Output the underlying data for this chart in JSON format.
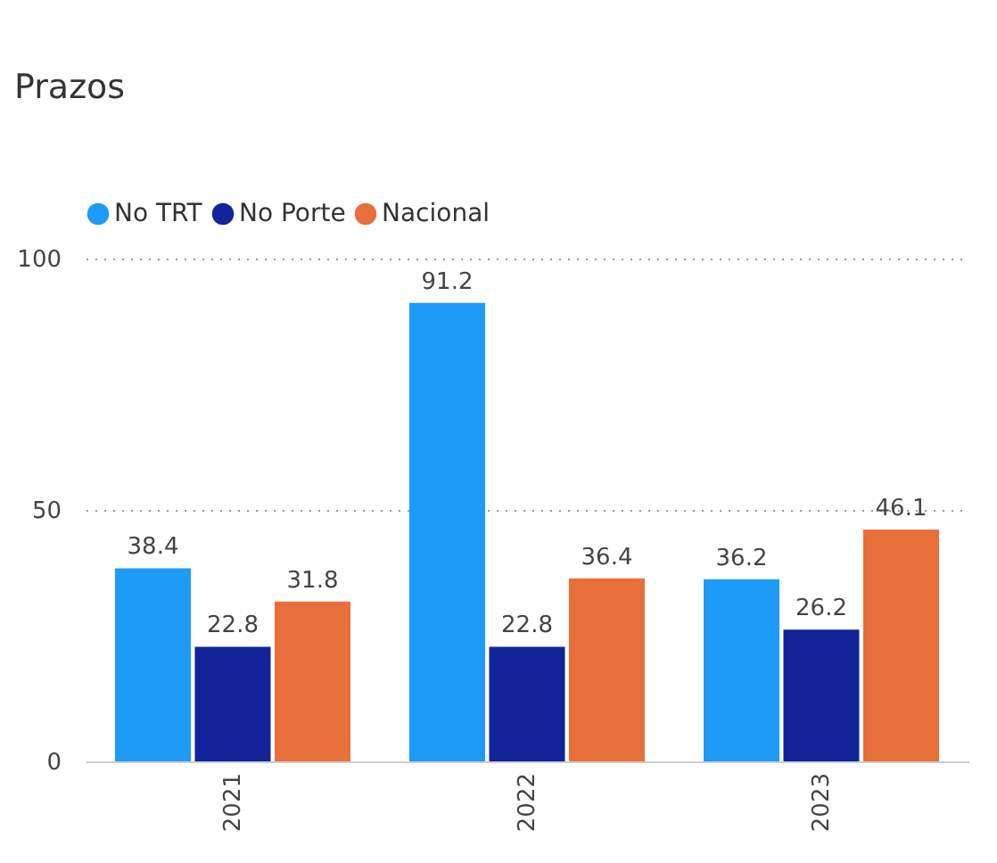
{
  "chart_data": {
    "type": "bar",
    "title": "Prazos",
    "categories": [
      "2021",
      "2022",
      "2023"
    ],
    "series": [
      {
        "name": "No TRT",
        "color": "#1e9bf6",
        "values": [
          38.4,
          91.2,
          36.2
        ]
      },
      {
        "name": "No Porte",
        "color": "#13239a",
        "values": [
          22.8,
          22.8,
          26.2
        ]
      },
      {
        "name": "Nacional",
        "color": "#e86f3a",
        "values": [
          31.8,
          36.4,
          46.1
        ]
      }
    ],
    "ylim": [
      0,
      100
    ],
    "yticks": [
      0,
      50,
      100
    ],
    "grid": "y",
    "legend": "top left",
    "data_labels": true
  }
}
